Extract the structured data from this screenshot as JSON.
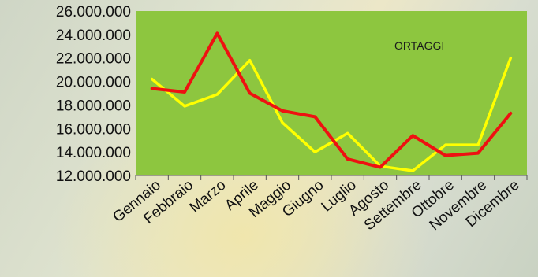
{
  "chart_data": {
    "type": "line",
    "categories": [
      "Gennaio",
      "Febbraio",
      "Marzo",
      "Aprile",
      "Maggio",
      "Giugno",
      "Luglio",
      "Agosto",
      "Settembre",
      "Ottobre",
      "Novembre",
      "Dicembre"
    ],
    "series": [
      {
        "color": "#ffff00",
        "values": [
          20200000,
          17900000,
          18900000,
          21800000,
          16500000,
          14000000,
          15600000,
          12800000,
          12400000,
          14600000,
          14600000,
          22000000
        ]
      },
      {
        "color": "#ee1111",
        "values": [
          19400000,
          19100000,
          24100000,
          19000000,
          17500000,
          17000000,
          13400000,
          12700000,
          15400000,
          13700000,
          13900000,
          17300000
        ]
      }
    ],
    "annotation": "ORTAGGI",
    "ylim": [
      12000000,
      26000000
    ],
    "yticks": [
      "12.000.000",
      "14.000.000",
      "16.000.000",
      "18.000.000",
      "20.000.000",
      "22.000.000",
      "24.000.000",
      "26.000.000"
    ],
    "grid": false,
    "plot_background": "#8dc63f"
  }
}
